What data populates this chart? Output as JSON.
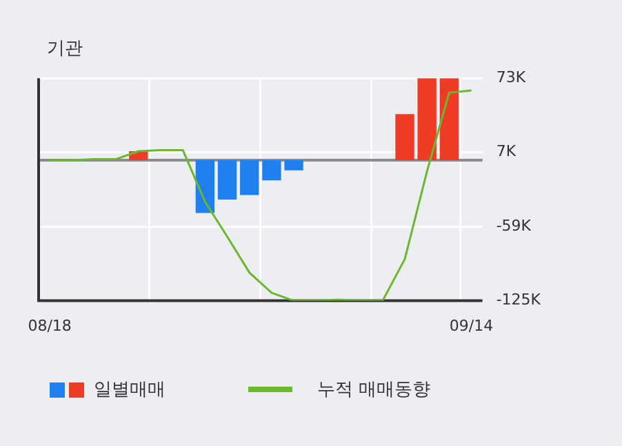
{
  "chart_data": {
    "type": "bar",
    "title": "기관",
    "categories": [
      "08/18",
      null,
      null,
      null,
      null,
      null,
      null,
      null,
      null,
      null,
      null,
      null,
      null,
      null,
      null,
      null,
      null,
      null,
      null,
      "09/14"
    ],
    "series": [
      {
        "name": "일별매매",
        "colors": [
          null,
          null,
          null,
          null,
          "#f03c24",
          null,
          null,
          "#2080f0",
          "#2080f0",
          "#2080f0",
          "#2080f0",
          "#2080f0",
          null,
          null,
          null,
          null,
          "#f03c24",
          "#f03c24",
          "#f03c24",
          null
        ],
        "values": [
          null,
          null,
          null,
          null,
          8000,
          null,
          null,
          -47000,
          -35000,
          -31000,
          -18000,
          -9000,
          null,
          null,
          null,
          null,
          41000,
          73000,
          73000,
          null
        ]
      },
      {
        "type": "line",
        "name": "누적 매매동향",
        "color": "#6ab82c",
        "values": [
          0,
          0,
          1000,
          1000,
          8000,
          9000,
          9000,
          -37000,
          -68000,
          -100000,
          -118000,
          -125000,
          -125000,
          -124000,
          -125000,
          -125000,
          -88000,
          -10000,
          60000,
          62000
        ]
      }
    ],
    "ylim": [
      -125000,
      73000
    ],
    "yticks": [
      {
        "value": -125000,
        "label": "-125K"
      },
      {
        "value": -59000,
        "label": "-59K"
      },
      {
        "value": 7000,
        "label": "7K"
      },
      {
        "value": 73000,
        "label": "73K"
      }
    ],
    "ref_lines": [
      {
        "axis": "y",
        "value": 0,
        "color": "#8c8c8c"
      }
    ],
    "grid": true,
    "legend": "bottom",
    "marker": "none",
    "line_style": "solid"
  }
}
